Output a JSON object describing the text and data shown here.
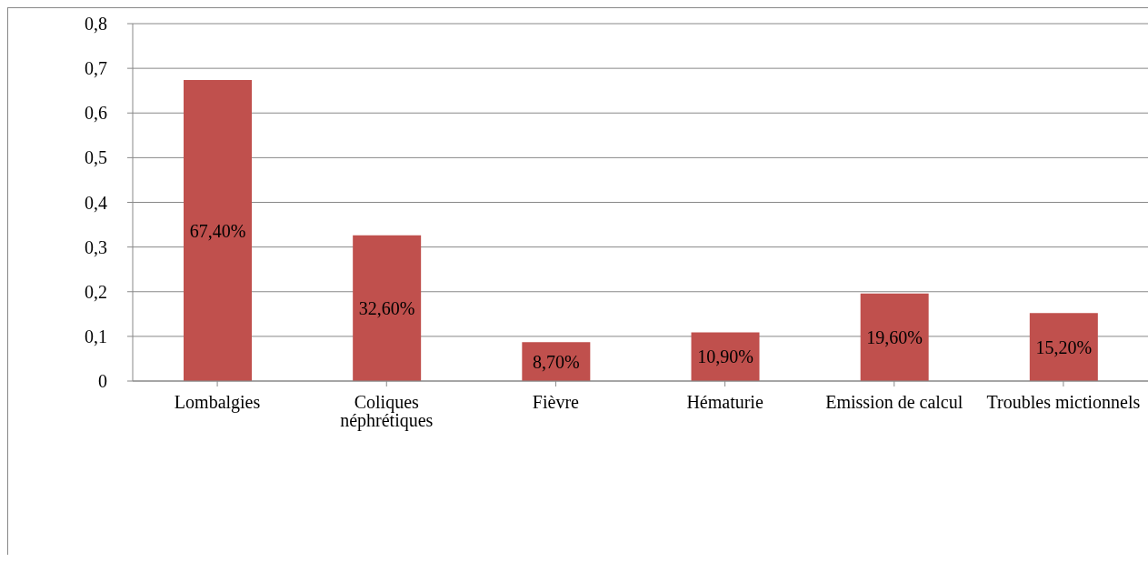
{
  "chart_data": {
    "type": "bar",
    "categories": [
      "Lombalgies",
      "Coliques néphrétiques",
      "Fièvre",
      "Hématurie",
      "Emission de calcul",
      "Troubles mictionnels"
    ],
    "values": [
      0.674,
      0.326,
      0.087,
      0.109,
      0.196,
      0.152
    ],
    "value_labels": [
      "67,40%",
      "32,60%",
      "8,70%",
      "10,90%",
      "19,60%",
      "15,20%"
    ],
    "color": "#c0504d",
    "ylim": [
      0,
      0.8
    ],
    "yticks": [
      0,
      {
        "value": 0.1,
        "label": "0,1"
      },
      {
        "value": 0.2,
        "label": "0,2"
      },
      {
        "value": 0.3,
        "label": "0,3"
      },
      {
        "value": 0.4,
        "label": "0,4"
      },
      {
        "value": 0.5,
        "label": "0,5"
      },
      {
        "value": 0.6,
        "label": "0,6"
      },
      {
        "value": 0.7,
        "label": "0,7"
      },
      {
        "value": 0.8,
        "label": "0,8"
      }
    ],
    "grid": "y"
  }
}
